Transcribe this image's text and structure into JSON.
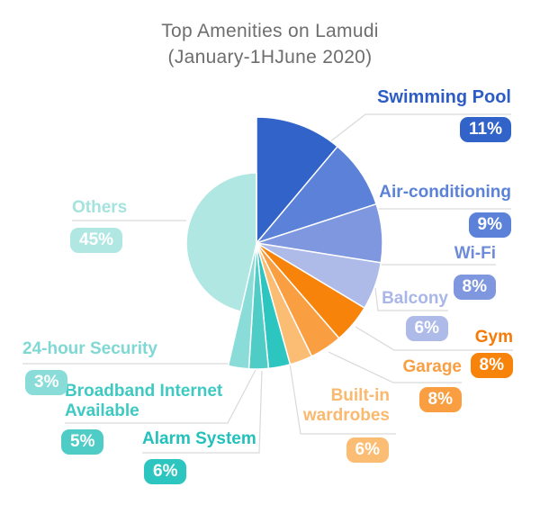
{
  "chart_data": {
    "type": "pie",
    "title": "Top Amenities on Lamudi",
    "subtitle": "(January-1HJune 2020)",
    "unit": "%",
    "legend_position": "around",
    "center": [
      285,
      270
    ],
    "slices": [
      {
        "label": "Swimming Pool",
        "value": 11,
        "pct_label": "11%",
        "color": "#3263c8",
        "label_color": "#2d5cc5",
        "start_angle": 0,
        "end_angle": 40,
        "radius": 140
      },
      {
        "label": "Air-conditioning",
        "value": 9,
        "pct_label": "9%",
        "color": "#5b82d8",
        "label_color": "#5b82d8",
        "start_angle": 40,
        "end_angle": 72,
        "radius": 140
      },
      {
        "label": "Wi-Fi",
        "value": 8,
        "pct_label": "8%",
        "color": "#7e97de",
        "label_color": "#6d8bd9",
        "start_angle": 72,
        "end_angle": 99,
        "radius": 140
      },
      {
        "label": "Balcony",
        "value": 6,
        "pct_label": "6%",
        "color": "#aebbe9",
        "label_color": "#a9b6e8",
        "start_angle": 99,
        "end_angle": 121,
        "radius": 140
      },
      {
        "label": "Gym",
        "value": 8,
        "pct_label": "8%",
        "color": "#f8830a",
        "label_color": "#f57a06",
        "start_angle": 121,
        "end_angle": 139,
        "radius": 140
      },
      {
        "label": "Garage",
        "value": 8,
        "pct_label": "8%",
        "color": "#f99e41",
        "label_color": "#f99e41",
        "start_angle": 139,
        "end_angle": 154,
        "radius": 140
      },
      {
        "label": "Built-in wardrobes",
        "value": 6,
        "pct_label": "6%",
        "color": "#fbbc74",
        "label_color": "#fab96e",
        "start_angle": 154,
        "end_angle": 164.5,
        "radius": 140
      },
      {
        "label": "Alarm System",
        "value": 6,
        "pct_label": "6%",
        "color": "#2dc5bf",
        "label_color": "#23c1bb",
        "start_angle": 164.5,
        "end_angle": 174.5,
        "radius": 140
      },
      {
        "label": "Broadband Internet Available",
        "value": 5,
        "pct_label": "5%",
        "color": "#4fccc6",
        "label_color": "#3fc9c3",
        "start_angle": 174.5,
        "end_angle": 183.5,
        "radius": 140
      },
      {
        "label": "24-hour Security",
        "value": 3,
        "pct_label": "3%",
        "color": "#8adcd8",
        "label_color": "#7fd8d3",
        "start_angle": 183.5,
        "end_angle": 193,
        "radius": 140
      },
      {
        "label": "Others",
        "value": 45,
        "pct_label": "45%",
        "color": "#b0e7e3",
        "label_color": "#a5e3de",
        "start_angle": 193,
        "end_angle": 360,
        "radius": 78
      }
    ]
  }
}
